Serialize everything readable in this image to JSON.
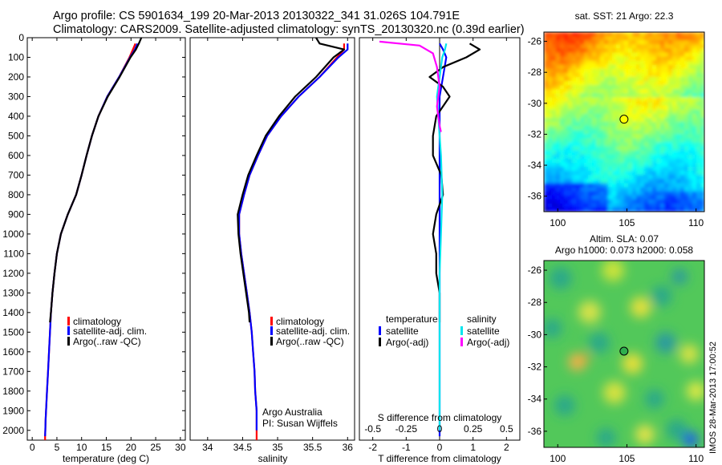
{
  "header": {
    "line1": "Argo profile: CS 5901634_199 20-Mar-2013 20130322_341 31.026S 104.791E",
    "line2": "Climatology: CARS2009. Satellite-adjusted climatology: synTS_20130320.nc (0.39d earlier)"
  },
  "colors": {
    "climatology": "#ff0000",
    "satellite": "#0000ff",
    "argo": "#000000",
    "salinity_satellite": "#00e5ee",
    "salinity_argo": "#ff00ff"
  },
  "chart_data": [
    {
      "id": "temperature",
      "type": "line",
      "xlabel": "temperature (deg C)",
      "ylabel": "",
      "xlim": [
        -1,
        31
      ],
      "ylim": [
        2050,
        0
      ],
      "xticks": [
        0,
        5,
        10,
        15,
        20,
        25,
        30
      ],
      "yticks": [
        0,
        100,
        200,
        300,
        400,
        500,
        600,
        700,
        800,
        900,
        1000,
        1100,
        1200,
        1300,
        1400,
        1500,
        1600,
        1700,
        1800,
        1900,
        2000
      ],
      "legend": [
        "climatology",
        "satellite-adj. clim.",
        "Argo(..raw -QC)"
      ],
      "legend_position": "bottom-center",
      "series": [
        {
          "name": "climatology",
          "color": "#ff0000",
          "x": [
            20.9,
            20.4,
            19.7,
            17.6,
            15.2,
            13.4,
            12.1,
            11.0,
            10.0,
            8.9,
            7.2,
            5.8,
            5.0,
            4.5,
            4.1,
            3.8,
            3.6,
            3.4,
            3.2,
            3.0,
            2.9,
            2.8,
            2.7,
            2.65,
            2.6,
            2.6
          ],
          "y": [
            30,
            60,
            100,
            200,
            300,
            400,
            500,
            600,
            700,
            800,
            900,
            1000,
            1100,
            1200,
            1300,
            1400,
            1500,
            1600,
            1700,
            1800,
            1850,
            1900,
            1950,
            2000,
            2030,
            2050
          ]
        },
        {
          "name": "satellite-adj. clim.",
          "color": "#0000ff",
          "x": [
            21.3,
            20.8,
            19.8,
            17.6,
            15.2,
            13.4,
            12.1,
            11.0,
            10.0,
            8.9,
            7.2,
            5.8,
            5.0,
            4.5,
            4.1,
            3.8,
            3.6,
            3.4,
            3.2,
            3.0,
            2.9,
            2.8,
            2.7,
            2.65,
            2.6
          ],
          "y": [
            30,
            60,
            100,
            200,
            300,
            400,
            500,
            600,
            700,
            800,
            900,
            1000,
            1100,
            1200,
            1300,
            1400,
            1500,
            1600,
            1700,
            1800,
            1850,
            1900,
            1950,
            2000,
            2030
          ]
        },
        {
          "name": "Argo(..raw -QC)",
          "color": "#000000",
          "x": [
            22.1,
            21.6,
            21.0,
            19.9,
            17.7,
            15.3,
            13.4,
            12.1,
            11.0,
            10.0,
            8.9,
            7.2,
            5.8,
            5.0,
            4.5,
            4.1,
            3.8,
            3.6
          ],
          "y": [
            0,
            30,
            60,
            100,
            200,
            300,
            400,
            500,
            600,
            700,
            800,
            900,
            1000,
            1100,
            1200,
            1300,
            1400,
            1450
          ]
        }
      ]
    },
    {
      "id": "salinity",
      "type": "line",
      "xlabel": "salinity",
      "ylabel": "",
      "xlim": [
        33.75,
        36.1
      ],
      "ylim": [
        2050,
        0
      ],
      "xticks": [
        34,
        34.5,
        35,
        35.5,
        36
      ],
      "legend": [
        "climatology",
        "satellite-adj. clim.",
        "Argo(..raw -QC)"
      ],
      "legend_position": "bottom-right",
      "annotations": [
        "Argo Australia",
        "PI: Susan Wijffels"
      ],
      "series": [
        {
          "name": "climatology",
          "color": "#ff0000",
          "x": [
            35.95,
            35.95,
            35.85,
            35.6,
            35.3,
            35.05,
            34.85,
            34.72,
            34.6,
            34.52,
            34.45,
            34.45,
            34.48,
            34.52,
            34.56,
            34.6,
            34.63,
            34.65,
            34.67,
            34.68,
            34.69,
            34.7,
            34.7,
            34.7,
            34.7
          ],
          "y": [
            30,
            60,
            100,
            200,
            300,
            400,
            500,
            600,
            700,
            800,
            900,
            1000,
            1100,
            1200,
            1300,
            1400,
            1500,
            1600,
            1700,
            1800,
            1850,
            1900,
            1950,
            2000,
            2050
          ]
        },
        {
          "name": "satellite-adj. clim.",
          "color": "#0000ff",
          "x": [
            36.0,
            36.0,
            35.87,
            35.6,
            35.3,
            35.05,
            34.85,
            34.72,
            34.6,
            34.52,
            34.45,
            34.45,
            34.48,
            34.52,
            34.56,
            34.6,
            34.63,
            34.65,
            34.67,
            34.68,
            34.69,
            34.7,
            34.7,
            34.7
          ],
          "y": [
            30,
            60,
            100,
            200,
            300,
            400,
            500,
            600,
            700,
            800,
            900,
            1000,
            1100,
            1200,
            1300,
            1400,
            1500,
            1600,
            1700,
            1800,
            1850,
            1900,
            1950,
            2000
          ]
        },
        {
          "name": "Argo(..raw -QC)",
          "color": "#000000",
          "x": [
            35.55,
            35.6,
            35.95,
            35.8,
            35.55,
            35.25,
            35.02,
            34.83,
            34.7,
            34.58,
            34.5,
            34.43,
            34.44,
            34.47,
            34.51,
            34.55,
            34.59,
            34.6
          ],
          "y": [
            0,
            30,
            60,
            100,
            200,
            300,
            400,
            500,
            600,
            700,
            800,
            900,
            1000,
            1100,
            1200,
            1300,
            1400,
            1450
          ]
        }
      ]
    },
    {
      "id": "difference",
      "type": "line",
      "xlabel": "T difference from climatology",
      "xlabel_top": "S difference from climatology",
      "ylabel": "",
      "xlim": [
        -2.4,
        2.4
      ],
      "ylim": [
        2050,
        0
      ],
      "xticks": [
        -2,
        -1,
        0,
        1,
        2
      ],
      "xticks_salinity": [
        "-0.5",
        "-0.25",
        "0",
        "0.25",
        "0.5"
      ],
      "legend_headers": [
        "temperature",
        "salinity"
      ],
      "legend": [
        "satellite",
        "Argo(-adj)",
        "satellite",
        "Argo(-adj)"
      ],
      "series": [
        {
          "name": "temperature satellite",
          "color": "#0000ff",
          "x": [
            0.0,
            0.1,
            0.2,
            0.1,
            0.0,
            0.0,
            0.0,
            0.0,
            0.0,
            0.0,
            0.0,
            0.0,
            0.0
          ],
          "y": [
            30,
            60,
            100,
            200,
            300,
            400,
            600,
            800,
            1000,
            1200,
            1500,
            1800,
            2030
          ]
        },
        {
          "name": "temperature Argo(-adj)",
          "color": "#000000",
          "x": [
            0.9,
            1.2,
            0.8,
            0.1,
            -0.3,
            0.1,
            0.3,
            -0.1,
            -0.2,
            -0.2,
            0.05,
            0.1,
            -0.1,
            -0.2,
            -0.1,
            -0.1,
            0.0,
            0.0
          ],
          "y": [
            30,
            60,
            100,
            150,
            200,
            250,
            300,
            400,
            500,
            600,
            700,
            800,
            900,
            1000,
            1100,
            1200,
            1300,
            1450
          ]
        },
        {
          "name": "salinity satellite",
          "color": "#00e5ee",
          "x": [
            0.05,
            0.04,
            0.02,
            0.0,
            -0.02,
            -0.01,
            0.0,
            0.01,
            0.02,
            0.01,
            0.0,
            0.0,
            0.0,
            0.0
          ],
          "y": [
            30,
            60,
            100,
            200,
            300,
            400,
            500,
            600,
            800,
            1000,
            1200,
            1500,
            1800,
            2000
          ]
        },
        {
          "name": "salinity Argo(-adj)",
          "color": "#ff00ff",
          "x": [
            -0.45,
            -0.15,
            -0.05,
            -0.02,
            0.0,
            -0.02,
            -0.01,
            0.0,
            0.01
          ],
          "y": [
            20,
            40,
            80,
            150,
            250,
            350,
            400,
            450,
            480
          ]
        }
      ]
    },
    {
      "id": "sst-map",
      "type": "heatmap",
      "title": "sat. SST: 21 Argo: 22.3",
      "xlim": [
        99,
        110.6
      ],
      "ylim": [
        -37,
        -25.4
      ],
      "xticks": [
        100,
        105,
        110
      ],
      "yticks": [
        -26,
        -28,
        -30,
        -32,
        -34,
        -36
      ],
      "marker": {
        "lon": 104.791,
        "lat": -31.026
      }
    },
    {
      "id": "sla-map",
      "type": "heatmap",
      "title_lines": [
        "Altim. SLA: 0.07",
        "Argo h1000: 0.073 h2000: 0.058"
      ],
      "xlim": [
        99,
        110.6
      ],
      "ylim": [
        -37,
        -25.4
      ],
      "xticks": [
        100,
        105,
        110
      ],
      "yticks": [
        -26,
        -28,
        -30,
        -32,
        -34,
        -36
      ],
      "marker": {
        "lon": 104.791,
        "lat": -31.026
      }
    }
  ],
  "footer": {
    "stamp": "IMOS 28-Mar-2013 17:00:52"
  }
}
